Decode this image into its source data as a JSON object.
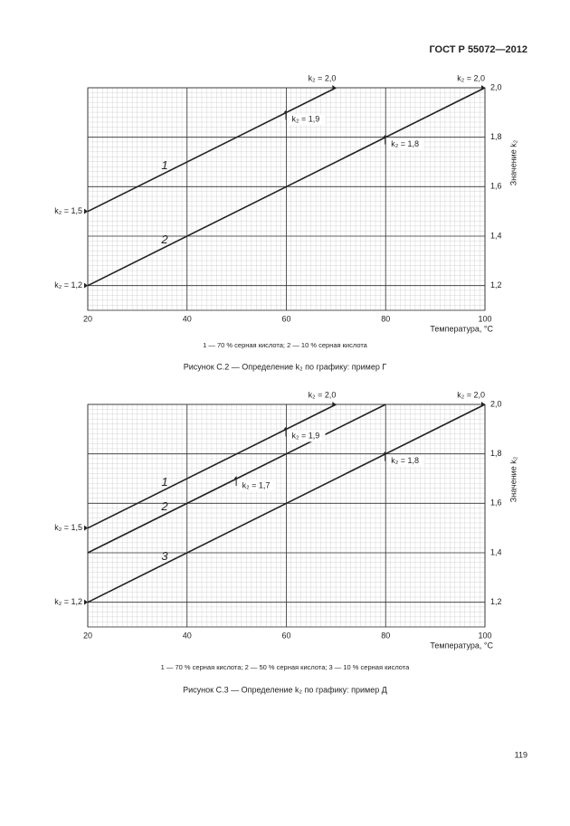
{
  "header": {
    "title": "ГОСТ Р 55072—2012"
  },
  "page_number": "119",
  "chart_data": [
    {
      "type": "line",
      "caption": "Рисунок С.2 — Определение k₂ по графику: пример Г",
      "legend_text": "1 — 70 % серная кислота; 2 — 10 % серная кислота",
      "xlabel": "Температура, °C",
      "ylabel": "Значение k₂",
      "xlim": [
        20,
        100
      ],
      "ylim": [
        1.1,
        2.0
      ],
      "xticks": [
        20,
        40,
        60,
        80,
        100
      ],
      "yticks": [
        {
          "value": 1.2,
          "label": "1,2"
        },
        {
          "value": 1.4,
          "label": "1,4"
        },
        {
          "value": 1.6,
          "label": "1,6"
        },
        {
          "value": 1.8,
          "label": "1,8"
        },
        {
          "value": 2.0,
          "label": "2,0"
        }
      ],
      "grid": true,
      "series": [
        {
          "name": "1",
          "color": "#222222",
          "x": [
            20,
            70
          ],
          "values": [
            1.5,
            2.0
          ]
        },
        {
          "name": "2",
          "color": "#222222",
          "x": [
            20,
            100
          ],
          "values": [
            1.2,
            2.0
          ]
        }
      ],
      "annotations": [
        {
          "text": "k₂ = 2,0",
          "x": 70,
          "y": 2.0
        },
        {
          "text": "k₂ = 2,0",
          "x": 100,
          "y": 2.0
        },
        {
          "text": "k₂ = 1,9",
          "x": 60,
          "y": 1.9
        },
        {
          "text": "k₂ = 1,8",
          "x": 80,
          "y": 1.8
        },
        {
          "text": "k₂ = 1,5",
          "x": 20,
          "y": 1.5
        },
        {
          "text": "k₂ = 1,2",
          "x": 20,
          "y": 1.2
        }
      ]
    },
    {
      "type": "line",
      "caption": "Рисунок С.3 — Определение k₂ по графику: пример Д",
      "legend_text": "1 — 70 % серная кислота; 2 — 50 % серная кислота; 3 — 10 % серная кислота",
      "xlabel": "Температура, °C",
      "ylabel": "Значение k₂",
      "xlim": [
        20,
        100
      ],
      "ylim": [
        1.1,
        2.0
      ],
      "xticks": [
        20,
        40,
        60,
        80,
        100
      ],
      "yticks": [
        {
          "value": 1.2,
          "label": "1,2"
        },
        {
          "value": 1.4,
          "label": "1,4"
        },
        {
          "value": 1.6,
          "label": "1,6"
        },
        {
          "value": 1.8,
          "label": "1,8"
        },
        {
          "value": 2.0,
          "label": "2,0"
        }
      ],
      "grid": true,
      "series": [
        {
          "name": "1",
          "color": "#222222",
          "x": [
            20,
            70
          ],
          "values": [
            1.5,
            2.0
          ]
        },
        {
          "name": "2",
          "color": "#222222",
          "x": [
            20,
            80
          ],
          "values": [
            1.4,
            2.0
          ]
        },
        {
          "name": "3",
          "color": "#222222",
          "x": [
            20,
            100
          ],
          "values": [
            1.2,
            2.0
          ]
        }
      ],
      "annotations": [
        {
          "text": "k₂ = 2,0",
          "x": 70,
          "y": 2.0
        },
        {
          "text": "k₂ = 2,0",
          "x": 100,
          "y": 2.0
        },
        {
          "text": "k₂ = 1,9",
          "x": 60,
          "y": 1.9
        },
        {
          "text": "k₂ = 1,7",
          "x": 50,
          "y": 1.7
        },
        {
          "text": "k₂ = 1,8",
          "x": 80,
          "y": 1.8
        },
        {
          "text": "k₂ = 1,5",
          "x": 20,
          "y": 1.5
        },
        {
          "text": "k₂ = 1,2",
          "x": 20,
          "y": 1.2
        }
      ]
    }
  ]
}
